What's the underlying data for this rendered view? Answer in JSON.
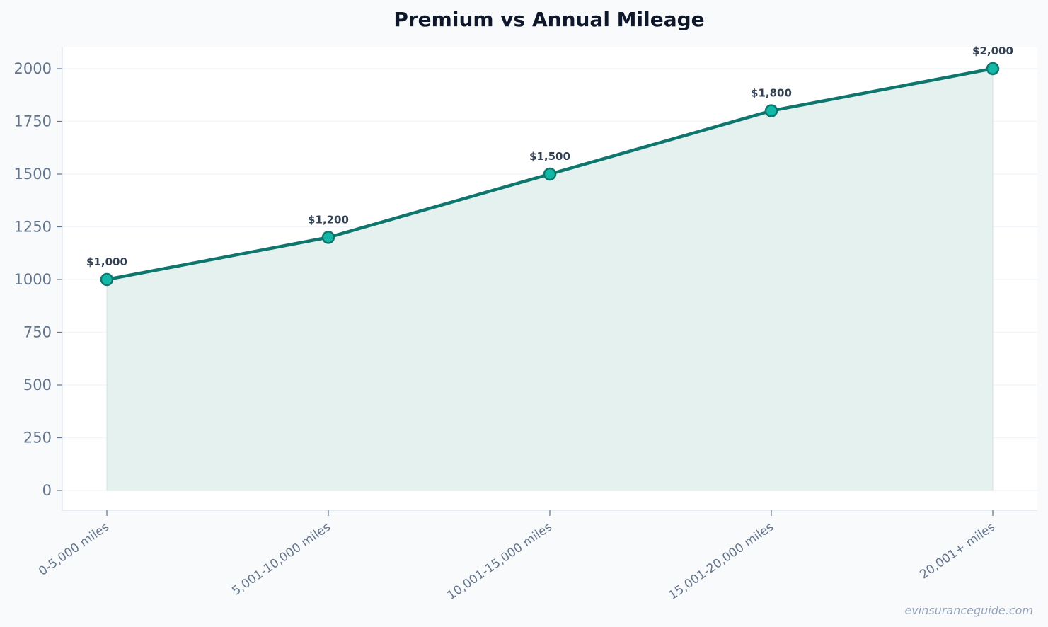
{
  "chart_data": {
    "type": "area",
    "title": "Premium vs Annual Mileage",
    "xlabel": "",
    "ylabel": "",
    "categories": [
      "0-5,000 miles",
      "5,001-10,000 miles",
      "10,001-15,000 miles",
      "15,001-20,000 miles",
      "20,001+ miles"
    ],
    "series": [
      {
        "values": [
          1000,
          1200,
          1500,
          1800,
          2000
        ],
        "data_labels": [
          "$1,000",
          "$1,200",
          "$1,500",
          "$1,800",
          "$2,000"
        ]
      }
    ],
    "ylim": [
      -95,
      2100
    ],
    "yticks": [
      0,
      250,
      500,
      750,
      1000,
      1250,
      1500,
      1750,
      2000
    ],
    "ytick_labels": [
      "0",
      "250",
      "500",
      "750",
      "1000",
      "1250",
      "1500",
      "1750",
      "2000"
    ],
    "grid": true,
    "colors": {
      "line": "#0f766e",
      "marker_fill": "#14b8a6",
      "area_fill": "#e4f1ee",
      "grid": "#f1f5f9",
      "plot_bg": "#ffffff",
      "page_bg": "#f8fafc"
    }
  },
  "watermark": "evinsuranceguide.com"
}
